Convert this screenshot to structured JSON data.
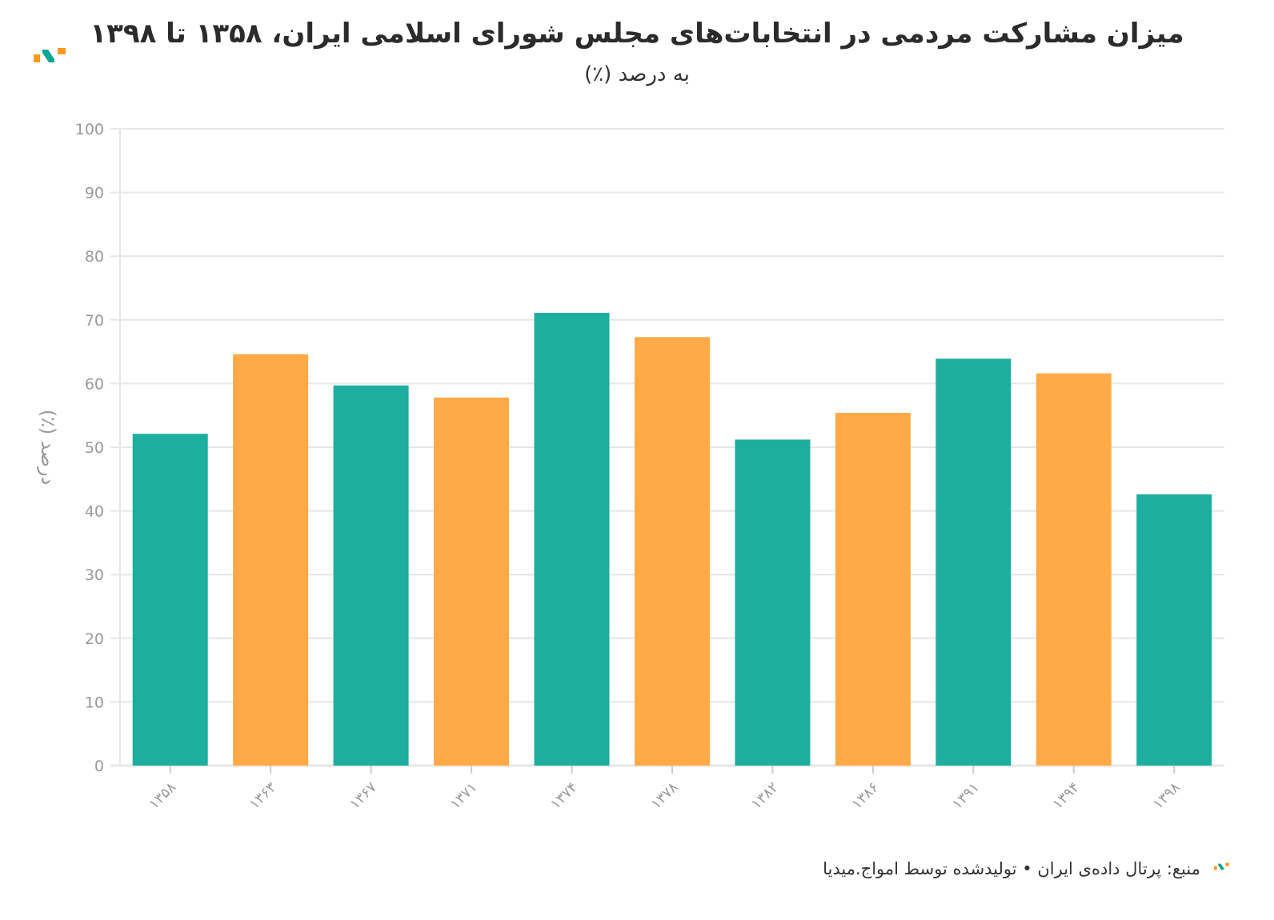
{
  "title": "میزان مشارکت مردمی در انتخابات‌های مجلس شورای اسلامی ایران، ۱۳۵۸ تا ۱۳۹۸",
  "subtitle": "به درصد (٪)",
  "footer": "منبع: پرتال داده‌ی ایران • تولیدشده توسط امواج.میدیا",
  "colors": {
    "teal": "#1eae9f",
    "orange": "#ffaa46",
    "grid": "#e6e6e6",
    "axis_text": "#999999"
  },
  "chart_data": {
    "type": "bar",
    "title": "میزان مشارکت مردمی در انتخابات‌های مجلس شورای اسلامی ایران، ۱۳۵۸ تا ۱۳۹۸",
    "subtitle": "به درصد (٪)",
    "xlabel": "",
    "ylabel": "درصد (٪)",
    "ylim": [
      0,
      100
    ],
    "yticks": [
      0,
      10,
      20,
      30,
      40,
      50,
      60,
      70,
      80,
      90,
      100
    ],
    "grid": true,
    "categories": [
      "۱۳۵۸",
      "۱۳۶۳",
      "۱۳۶۷",
      "۱۳۷۱",
      "۱۳۷۴",
      "۱۳۷۸",
      "۱۳۸۲",
      "۱۳۸۶",
      "۱۳۹۱",
      "۱۳۹۴",
      "۱۳۹۸"
    ],
    "values": [
      52.1,
      64.6,
      59.7,
      57.8,
      71.1,
      67.3,
      51.2,
      55.4,
      63.9,
      61.6,
      42.6
    ]
  }
}
